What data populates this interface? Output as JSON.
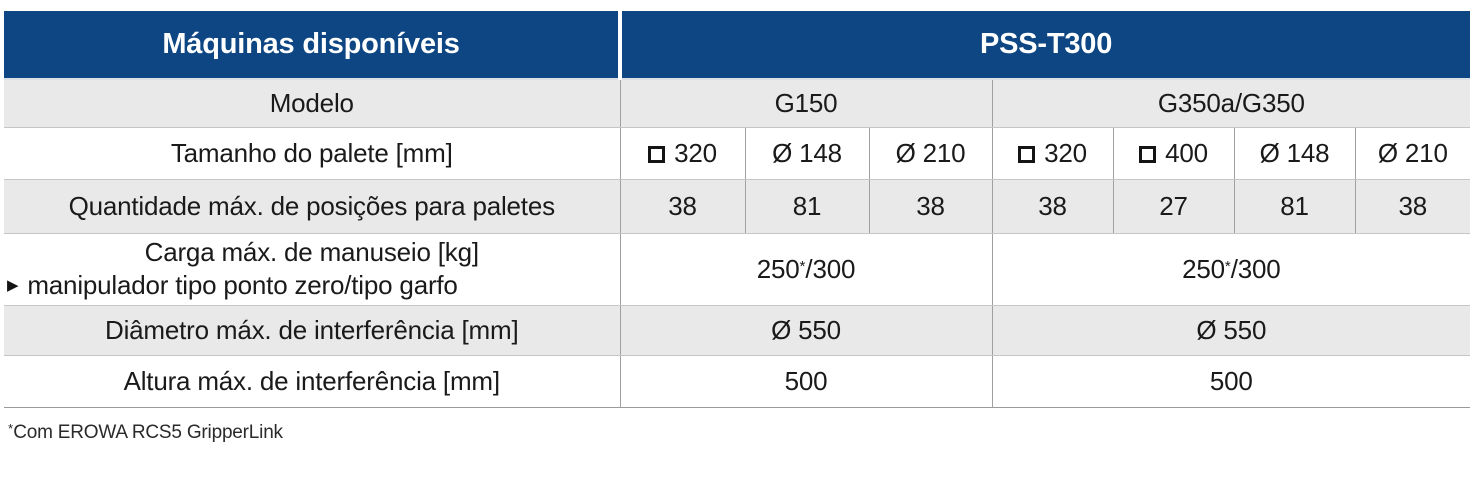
{
  "header": {
    "machines_label": "Máquinas disponíveis",
    "product": "PSS-T300"
  },
  "groups": {
    "g150": "G150",
    "g350": "G350a/G350"
  },
  "rows": {
    "modelo": {
      "label": "Modelo"
    },
    "palete": {
      "label": "Tamanho do palete [mm]",
      "values": [
        {
          "symbol": "square",
          "size": "320"
        },
        {
          "symbol": "diameter",
          "size": "148"
        },
        {
          "symbol": "diameter",
          "size": "210"
        },
        {
          "symbol": "square",
          "size": "320"
        },
        {
          "symbol": "square",
          "size": "400"
        },
        {
          "symbol": "diameter",
          "size": "148"
        },
        {
          "symbol": "diameter",
          "size": "210"
        }
      ]
    },
    "posicoes": {
      "label": "Quantidade máx. de posições para paletes",
      "values": [
        "38",
        "81",
        "38",
        "38",
        "27",
        "81",
        "38"
      ]
    },
    "carga": {
      "label_line1": "Carga máx. de manuseio [kg]",
      "bullet": "▶",
      "label_line2": "manipulador tipo ponto zero/tipo garfo",
      "values": [
        {
          "base": "250",
          "sup": "*",
          "rest": "/300"
        },
        {
          "base": "250",
          "sup": "*",
          "rest": "/300"
        }
      ]
    },
    "diametro": {
      "label": "Diâmetro máx. de interferência [mm]",
      "values": [
        "Ø 550",
        "Ø 550"
      ]
    },
    "altura": {
      "label": "Altura máx. de interferência [mm]",
      "values": [
        "500",
        "500"
      ]
    }
  },
  "footnote": {
    "sup": "*",
    "text": "Com EROWA RCS5 GripperLink"
  },
  "colors": {
    "header_blue": "#0d4682",
    "row_gray": "#e9e9e9",
    "grid_line": "#a0a0a0"
  },
  "diameter_glyph": "Ø"
}
